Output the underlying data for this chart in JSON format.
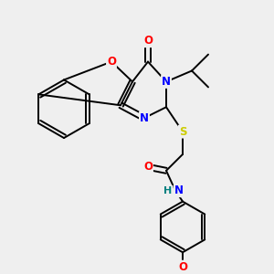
{
  "background_color": "#efefef",
  "bond_color": "#000000",
  "atom_colors": {
    "O": "#ff0000",
    "N": "#0000ff",
    "S": "#cccc00",
    "H": "#008080",
    "C": "#000000"
  },
  "figsize": [
    3.0,
    3.0
  ],
  "dpi": 100
}
